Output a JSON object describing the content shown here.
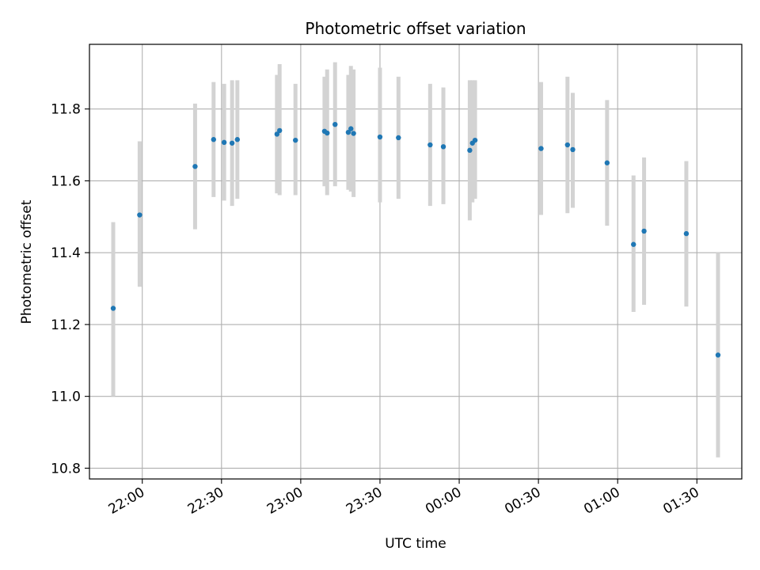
{
  "chart_data": {
    "type": "scatter",
    "title": "Photometric offset variation",
    "xlabel": "UTC time",
    "ylabel": "Photometric offset",
    "x_unit": "minutes",
    "xlim": [
      "21:40",
      "01:47"
    ],
    "ylim": [
      10.77,
      11.98
    ],
    "x_ticks": [
      "22:00",
      "22:30",
      "23:00",
      "23:30",
      "00:00",
      "00:30",
      "01:00",
      "01:30"
    ],
    "y_ticks": [
      10.8,
      11.0,
      11.2,
      11.4,
      11.6,
      11.8
    ],
    "y_tick_labels": [
      "10.8",
      "11.0",
      "11.2",
      "11.4",
      "11.6",
      "11.8"
    ],
    "grid": true,
    "series": [
      {
        "marker_color": "#1f77b4",
        "errorbar_color": "#d3d3d3",
        "points": [
          {
            "x": "21:49",
            "y": 11.245,
            "lo": 11.0,
            "hi": 11.485
          },
          {
            "x": "21:59",
            "y": 11.505,
            "lo": 11.305,
            "hi": 11.71
          },
          {
            "x": "22:20",
            "y": 11.64,
            "lo": 11.465,
            "hi": 11.815
          },
          {
            "x": "22:27",
            "y": 11.715,
            "lo": 11.555,
            "hi": 11.875
          },
          {
            "x": "22:31",
            "y": 11.707,
            "lo": 11.545,
            "hi": 11.87
          },
          {
            "x": "22:34",
            "y": 11.705,
            "lo": 11.53,
            "hi": 11.88
          },
          {
            "x": "22:36",
            "y": 11.715,
            "lo": 11.55,
            "hi": 11.88
          },
          {
            "x": "22:51",
            "y": 11.73,
            "lo": 11.565,
            "hi": 11.895
          },
          {
            "x": "22:52",
            "y": 11.74,
            "lo": 11.56,
            "hi": 11.925
          },
          {
            "x": "22:58",
            "y": 11.713,
            "lo": 11.56,
            "hi": 11.87
          },
          {
            "x": "23:09",
            "y": 11.738,
            "lo": 11.585,
            "hi": 11.89
          },
          {
            "x": "23:10",
            "y": 11.733,
            "lo": 11.56,
            "hi": 11.91
          },
          {
            "x": "23:13",
            "y": 11.757,
            "lo": 11.585,
            "hi": 11.93
          },
          {
            "x": "23:18",
            "y": 11.735,
            "lo": 11.575,
            "hi": 11.895
          },
          {
            "x": "23:19",
            "y": 11.745,
            "lo": 11.57,
            "hi": 11.92
          },
          {
            "x": "23:20",
            "y": 11.732,
            "lo": 11.555,
            "hi": 11.91
          },
          {
            "x": "23:30",
            "y": 11.722,
            "lo": 11.54,
            "hi": 11.915
          },
          {
            "x": "23:37",
            "y": 11.72,
            "lo": 11.55,
            "hi": 11.89
          },
          {
            "x": "23:49",
            "y": 11.7,
            "lo": 11.53,
            "hi": 11.87
          },
          {
            "x": "23:54",
            "y": 11.695,
            "lo": 11.535,
            "hi": 11.86
          },
          {
            "x": "00:04",
            "y": 11.685,
            "lo": 11.49,
            "hi": 11.88
          },
          {
            "x": "00:05",
            "y": 11.705,
            "lo": 11.54,
            "hi": 11.88
          },
          {
            "x": "00:06",
            "y": 11.713,
            "lo": 11.55,
            "hi": 11.88
          },
          {
            "x": "00:31",
            "y": 11.69,
            "lo": 11.505,
            "hi": 11.875
          },
          {
            "x": "00:41",
            "y": 11.7,
            "lo": 11.51,
            "hi": 11.89
          },
          {
            "x": "00:43",
            "y": 11.687,
            "lo": 11.525,
            "hi": 11.845
          },
          {
            "x": "00:56",
            "y": 11.65,
            "lo": 11.475,
            "hi": 11.825
          },
          {
            "x": "01:06",
            "y": 11.423,
            "lo": 11.235,
            "hi": 11.615
          },
          {
            "x": "01:10",
            "y": 11.46,
            "lo": 11.255,
            "hi": 11.665
          },
          {
            "x": "01:26",
            "y": 11.453,
            "lo": 11.25,
            "hi": 11.655
          },
          {
            "x": "01:38",
            "y": 11.115,
            "lo": 10.83,
            "hi": 11.4
          }
        ]
      }
    ]
  }
}
